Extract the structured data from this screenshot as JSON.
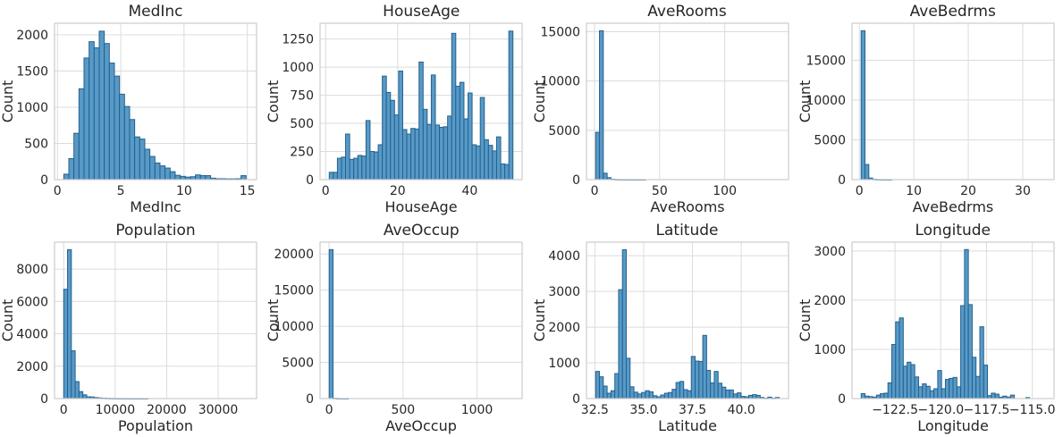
{
  "figure": {
    "background": "#ffffff",
    "bar_fill": "#5799c7",
    "bar_edge": "#24618d",
    "grid_color": "#dcdcdc",
    "spine_color": "#cccccc",
    "text_color": "#262626"
  },
  "chart_data": [
    {
      "type": "bar",
      "subtype": "histogram",
      "name": "medinc",
      "title": "MedInc",
      "xlabel": "MedInc",
      "ylabel": "Count",
      "xlim": [
        -0.23,
        15.73
      ],
      "ylim": [
        0,
        2160
      ],
      "xtick_values": [
        0,
        5,
        10,
        15
      ],
      "xtick_labels": [
        "0",
        "5",
        "10",
        "15"
      ],
      "ytick_values": [
        0,
        500,
        1000,
        1500,
        2000
      ],
      "ytick_labels": [
        "0",
        "500",
        "1000",
        "1500",
        "2000"
      ],
      "bin_start": 0.5,
      "bin_width": 0.4,
      "counts": [
        75,
        290,
        640,
        1255,
        1680,
        1905,
        1820,
        2050,
        1880,
        1610,
        1430,
        1180,
        1010,
        830,
        590,
        560,
        420,
        320,
        230,
        190,
        160,
        110,
        60,
        45,
        35,
        40,
        65,
        55,
        55,
        20,
        12,
        12,
        10,
        10,
        12,
        55
      ],
      "grid": true,
      "legend": false
    },
    {
      "type": "bar",
      "subtype": "histogram",
      "name": "houseage",
      "title": "HouseAge",
      "xlabel": "HouseAge",
      "ylabel": "Count",
      "xlim": [
        -1.55,
        54.55
      ],
      "ylim": [
        0,
        1390
      ],
      "xtick_values": [
        0,
        20,
        40
      ],
      "xtick_labels": [
        "0",
        "20",
        "40"
      ],
      "ytick_values": [
        0,
        250,
        500,
        750,
        1000,
        1250
      ],
      "ytick_labels": [
        "0",
        "250",
        "500",
        "750",
        "1000",
        "1250"
      ],
      "bin_start": 1,
      "bin_width": 1.1333,
      "counts": [
        65,
        65,
        190,
        200,
        405,
        180,
        190,
        215,
        210,
        525,
        250,
        245,
        310,
        920,
        775,
        705,
        575,
        965,
        445,
        405,
        455,
        450,
        1045,
        625,
        490,
        930,
        485,
        465,
        470,
        565,
        1300,
        830,
        865,
        540,
        770,
        310,
        300,
        730,
        355,
        305,
        255,
        380,
        140,
        135,
        1320
      ],
      "grid": true,
      "legend": false
    },
    {
      "type": "bar",
      "subtype": "histogram",
      "name": "averooms",
      "title": "AveRooms",
      "xlabel": "AveRooms",
      "ylabel": "Count",
      "xlim": [
        -6.2,
        149.0
      ],
      "ylim": [
        0,
        15860
      ],
      "xtick_values": [
        0,
        50,
        100
      ],
      "xtick_labels": [
        "0",
        "50",
        "100"
      ],
      "ytick_values": [
        0,
        5000,
        10000,
        15000
      ],
      "ytick_labels": [
        "0",
        "5000",
        "10000",
        "15000"
      ],
      "bin_start": 0.85,
      "bin_width": 2.94,
      "counts": [
        4800,
        15100,
        650,
        200,
        40,
        15,
        8,
        5,
        3,
        2,
        1,
        1,
        1
      ],
      "grid": true,
      "legend": false
    },
    {
      "type": "bar",
      "subtype": "histogram",
      "name": "avebedrms",
      "title": "AveBedrms",
      "xlabel": "AveBedrms",
      "ylabel": "Count",
      "xlim": [
        -1.35,
        35.75
      ],
      "ylim": [
        0,
        19640
      ],
      "xtick_values": [
        0,
        10,
        20,
        30
      ],
      "xtick_labels": [
        "0",
        "10",
        "20",
        "30"
      ],
      "ytick_values": [
        0,
        5000,
        10000,
        15000
      ],
      "ytick_labels": [
        "0",
        "5000",
        "10000",
        "15000"
      ],
      "bin_start": 0.33,
      "bin_width": 0.703,
      "counts": [
        18700,
        1900,
        200,
        40,
        12,
        5,
        2,
        1
      ],
      "grid": true,
      "legend": false
    },
    {
      "type": "bar",
      "subtype": "histogram",
      "name": "population",
      "title": "Population",
      "xlabel": "Population",
      "ylabel": "Count",
      "xlim": [
        -1781,
        37466
      ],
      "ylim": [
        0,
        9660
      ],
      "xtick_values": [
        0,
        10000,
        20000,
        30000
      ],
      "xtick_labels": [
        "0",
        "10000",
        "20000",
        "30000"
      ],
      "ytick_values": [
        0,
        2000,
        4000,
        6000,
        8000
      ],
      "ytick_labels": [
        "0",
        "2000",
        "4000",
        "6000",
        "8000"
      ],
      "bin_start": 3,
      "bin_width": 743,
      "counts": [
        6750,
        9200,
        2950,
        1050,
        430,
        230,
        110,
        100,
        60,
        40,
        25,
        15,
        10,
        8,
        5,
        4,
        3,
        2,
        2,
        1,
        1,
        1
      ],
      "grid": true,
      "legend": false
    },
    {
      "type": "bar",
      "subtype": "histogram",
      "name": "aveoccup",
      "title": "AveOccup",
      "xlabel": "AveOccup",
      "ylabel": "Count",
      "xlim": [
        -61,
        1305
      ],
      "ylim": [
        0,
        21630
      ],
      "xtick_values": [
        0,
        500,
        1000
      ],
      "xtick_labels": [
        "0",
        "500",
        "1000"
      ],
      "ytick_values": [
        0,
        5000,
        10000,
        15000,
        20000
      ],
      "ytick_labels": [
        "0",
        "5000",
        "10000",
        "15000",
        "20000"
      ],
      "bin_start": 0.7,
      "bin_width": 25.9,
      "counts": [
        20600,
        40,
        8,
        3,
        1
      ],
      "grid": true,
      "legend": false
    },
    {
      "type": "bar",
      "subtype": "histogram",
      "name": "latitude",
      "title": "Latitude",
      "xlabel": "Latitude",
      "ylabel": "Count",
      "xlim": [
        32.07,
        42.42
      ],
      "ylim": [
        0,
        4380
      ],
      "xtick_values": [
        32.5,
        35.0,
        37.5,
        40.0
      ],
      "xtick_labels": [
        "32.5",
        "35.0",
        "37.5",
        "40.0"
      ],
      "ytick_values": [
        0,
        1000,
        2000,
        3000,
        4000
      ],
      "ytick_labels": [
        "0",
        "1000",
        "2000",
        "3000",
        "4000"
      ],
      "bin_start": 32.54,
      "bin_width": 0.196,
      "counts": [
        760,
        610,
        350,
        150,
        220,
        700,
        3050,
        4170,
        1130,
        330,
        180,
        130,
        170,
        220,
        190,
        80,
        50,
        100,
        150,
        170,
        260,
        450,
        480,
        250,
        220,
        1180,
        1050,
        1040,
        1770,
        790,
        440,
        760,
        430,
        320,
        240,
        240,
        130,
        160,
        60,
        50,
        90,
        110,
        90,
        30,
        10,
        40,
        10,
        30
      ],
      "grid": true,
      "legend": false
    },
    {
      "type": "bar",
      "subtype": "histogram",
      "name": "longitude",
      "title": "Longitude",
      "xlabel": "Longitude",
      "ylabel": "Count",
      "xlim": [
        -124.85,
        -113.81
      ],
      "ylim": [
        0,
        3180
      ],
      "xtick_values": [
        -122.5,
        -120.0,
        -117.5,
        -115.0
      ],
      "xtick_labels": [
        "−122.5",
        "−120.0",
        "−117.5",
        "−115.0"
      ],
      "ytick_values": [
        0,
        1000,
        2000,
        3000
      ],
      "ytick_labels": [
        "0",
        "1000",
        "2000",
        "3000"
      ],
      "bin_start": -124.35,
      "bin_width": 0.2092,
      "counts": [
        100,
        50,
        40,
        30,
        70,
        100,
        110,
        320,
        1100,
        1560,
        1640,
        660,
        740,
        690,
        440,
        240,
        300,
        250,
        160,
        200,
        570,
        200,
        390,
        410,
        430,
        240,
        1890,
        3030,
        1910,
        840,
        450,
        1460,
        680,
        60,
        110,
        90,
        30,
        50,
        30,
        70,
        0,
        0,
        0,
        20,
        0,
        0,
        0,
        0
      ],
      "grid": true,
      "legend": false
    }
  ]
}
